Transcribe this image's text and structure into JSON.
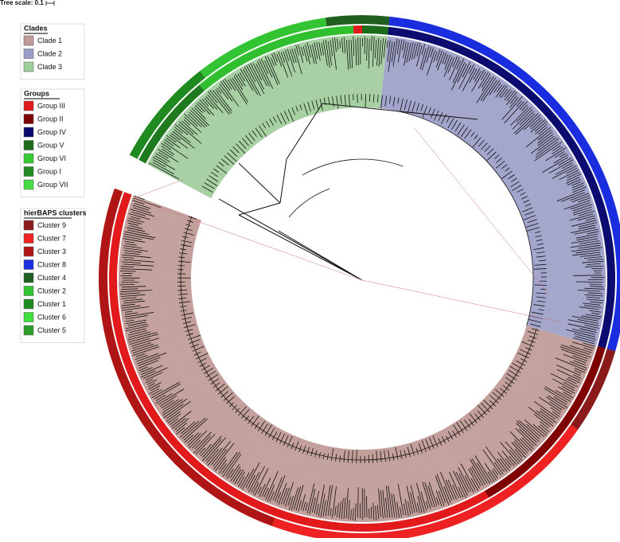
{
  "tree_scale": "Tree scale: 0.1",
  "legends": [
    {
      "title": "Clades",
      "items": [
        {
          "label": "Clade 1",
          "color": "#c29a97"
        },
        {
          "label": "Clade 2",
          "color": "#9a9cc8"
        },
        {
          "label": "Clade 3",
          "color": "#9fcf9a"
        }
      ]
    },
    {
      "title": "Groups",
      "items": [
        {
          "label": "Group III",
          "color": "#e31a1c"
        },
        {
          "label": "Group II",
          "color": "#7f0000"
        },
        {
          "label": "Group IV",
          "color": "#0a0a6e"
        },
        {
          "label": "Group V",
          "color": "#1a6b1a"
        },
        {
          "label": "Group VI",
          "color": "#33cc33"
        },
        {
          "label": "Group I",
          "color": "#228b22"
        },
        {
          "label": "Group VII",
          "color": "#44dd44"
        }
      ]
    },
    {
      "title": "hierBAPS clusters",
      "items": [
        {
          "label": "Cluster 9",
          "color": "#8b1a1a"
        },
        {
          "label": "Cluster 7",
          "color": "#ee2222"
        },
        {
          "label": "Cluster 3",
          "color": "#b01515"
        },
        {
          "label": "Cluster 8",
          "color": "#1a2ee0"
        },
        {
          "label": "Cluster 4",
          "color": "#1e5e1e"
        },
        {
          "label": "Cluster 2",
          "color": "#33c433"
        },
        {
          "label": "Cluster 1",
          "color": "#1f8a1f"
        },
        {
          "label": "Cluster 6",
          "color": "#3ee03e"
        },
        {
          "label": "Cluster 5",
          "color": "#2a9e2a"
        }
      ]
    }
  ]
}
